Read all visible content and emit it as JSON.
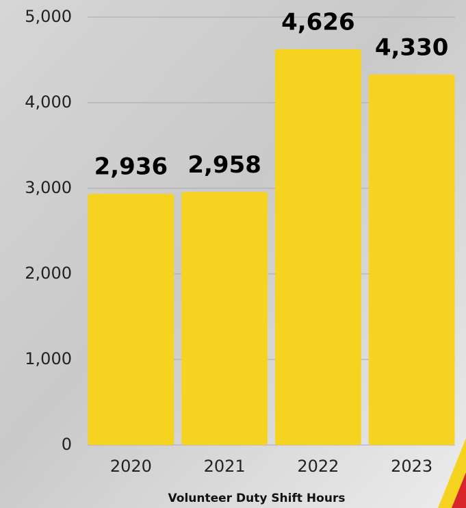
{
  "chart_data": {
    "type": "bar",
    "x_label": "Volunteer Duty Shift Hours",
    "categories": [
      "2020",
      "2021",
      "2022",
      "2023"
    ],
    "values": [
      2936,
      2958,
      4626,
      4330
    ],
    "value_labels": [
      "2,936",
      "2,958",
      "4,626",
      "4,330"
    ],
    "color": "#f5d320",
    "ylim": [
      0,
      5000
    ],
    "yticks": [
      0,
      {
        "value": 1000,
        "label": "1,000"
      },
      {
        "value": 2000,
        "label": "2,000"
      },
      {
        "value": 3000,
        "label": "3,000"
      },
      {
        "value": 4000,
        "label": "4,000"
      },
      {
        "value": 5000,
        "label": "5,000"
      }
    ],
    "grid": true
  }
}
